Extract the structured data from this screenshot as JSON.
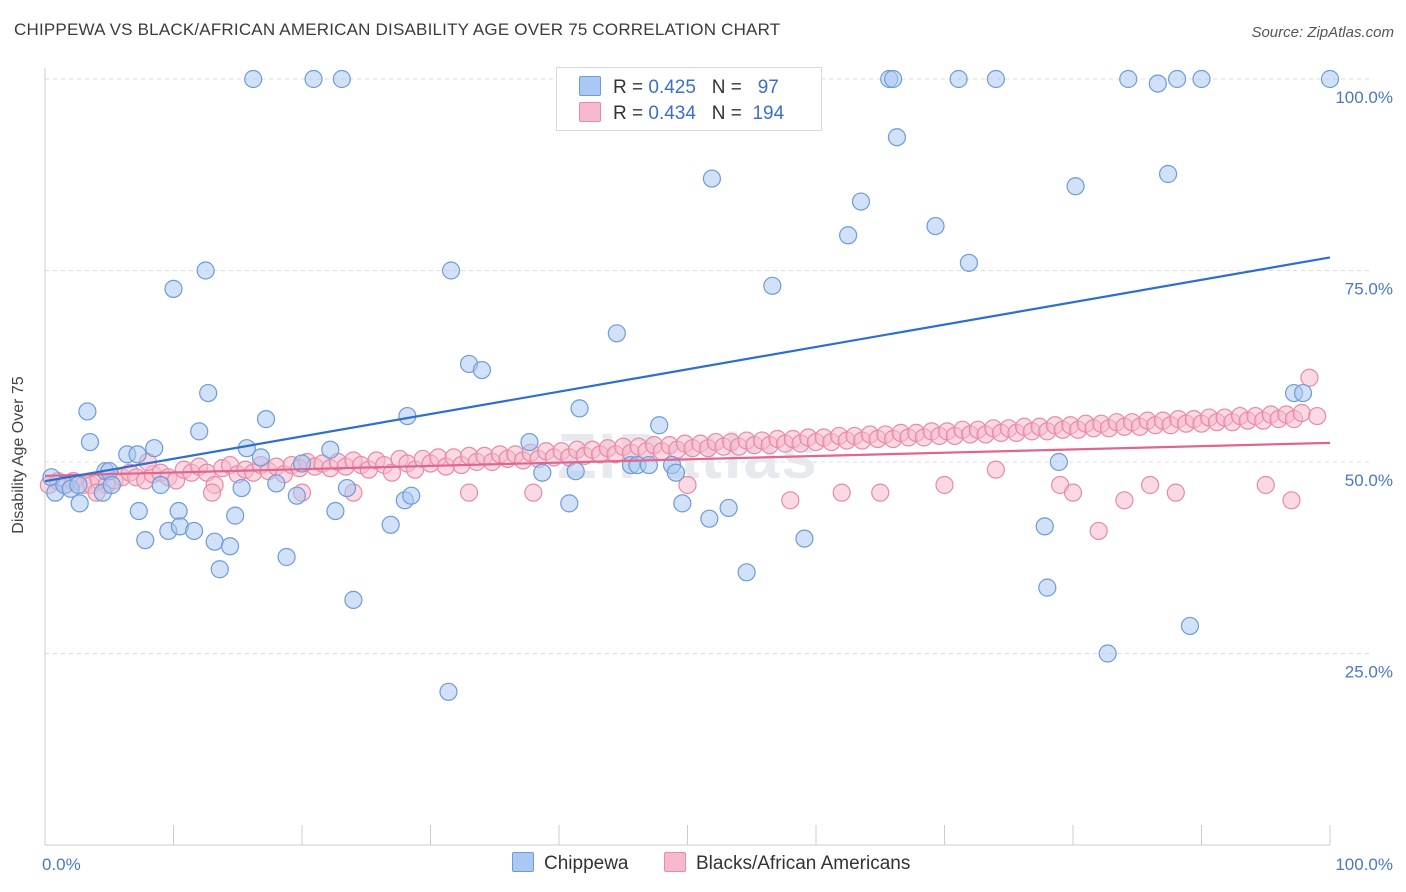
{
  "title": "CHIPPEWA VS BLACK/AFRICAN AMERICAN DISABILITY AGE OVER 75 CORRELATION CHART",
  "source": "Source: ZipAtlas.com",
  "watermark": "ZIPatlas",
  "legend": {
    "rows": [
      {
        "r_label": "R =",
        "r_value": "0.425",
        "n_label": "N =",
        "n_value": "97"
      },
      {
        "r_label": "R =",
        "r_value": "0.434",
        "n_label": "N =",
        "n_value": "194"
      }
    ]
  },
  "bottom_legend": {
    "series1": "Chippewa",
    "series2": "Blacks/African Americans"
  },
  "colors": {
    "chippewa_fill": "#a9c8f2",
    "chippewa_stroke": "#6f9bd6",
    "chippewa_line": "#2d6fd0",
    "black_fill": "#f6b9cc",
    "black_stroke": "#e88aa8",
    "black_line": "#e0668f",
    "grid": "#dddddd",
    "axis_label": "#4a78c8"
  },
  "chart_data": {
    "type": "scatter",
    "title": "CHIPPEWA VS BLACK/AFRICAN AMERICAN DISABILITY AGE OVER 75 CORRELATION CHART",
    "xlabel": "",
    "ylabel": "Disability Age Over 75",
    "xlim": [
      0,
      100
    ],
    "ylim": [
      0,
      105
    ],
    "x_tick_labels": [
      "0.0%",
      "100.0%"
    ],
    "y_ticks": [
      25,
      50,
      75,
      100
    ],
    "y_tick_labels": [
      "25.0%",
      "50.0%",
      "75.0%",
      "100.0%"
    ],
    "grid": true,
    "legend_position": "top-center",
    "series": [
      {
        "name": "Chippewa",
        "r": 0.425,
        "n": 97,
        "trend": {
          "x": [
            0,
            100
          ],
          "y": [
            47.5,
            76.7
          ]
        },
        "points": [
          [
            0.5,
            48
          ],
          [
            0.8,
            46
          ],
          [
            1.5,
            47
          ],
          [
            2,
            46.5
          ],
          [
            2.6,
            47
          ],
          [
            2.7,
            44.6
          ],
          [
            3.3,
            56.6
          ],
          [
            3.5,
            52.6
          ],
          [
            4.5,
            46
          ],
          [
            4.7,
            48.8
          ],
          [
            5,
            48.8
          ],
          [
            5.2,
            47
          ],
          [
            6.4,
            51
          ],
          [
            7.2,
            51
          ],
          [
            7.3,
            43.6
          ],
          [
            7.8,
            39.8
          ],
          [
            8.5,
            51.8
          ],
          [
            9,
            47
          ],
          [
            9.6,
            41
          ],
          [
            10,
            72.6
          ],
          [
            10.4,
            43.6
          ],
          [
            10.5,
            41.6
          ],
          [
            11.6,
            41
          ],
          [
            12,
            54
          ],
          [
            12.5,
            75
          ],
          [
            12.7,
            59
          ],
          [
            13.2,
            39.6
          ],
          [
            13.6,
            36
          ],
          [
            14.4,
            39
          ],
          [
            14.8,
            43
          ],
          [
            15.3,
            46.6
          ],
          [
            15.7,
            51.8
          ],
          [
            16.2,
            100
          ],
          [
            16.8,
            50.6
          ],
          [
            17.2,
            55.6
          ],
          [
            18,
            47.2
          ],
          [
            18.8,
            37.6
          ],
          [
            19.6,
            45.6
          ],
          [
            20,
            49.8
          ],
          [
            20.9,
            100
          ],
          [
            22.2,
            51.6
          ],
          [
            22.6,
            43.6
          ],
          [
            23.1,
            100
          ],
          [
            23.5,
            46.6
          ],
          [
            24,
            32
          ],
          [
            26.9,
            41.8
          ],
          [
            28,
            45
          ],
          [
            28.2,
            56
          ],
          [
            28.5,
            45.6
          ],
          [
            31.4,
            20
          ],
          [
            31.6,
            75
          ],
          [
            33,
            62.8
          ],
          [
            34,
            62
          ],
          [
            37.7,
            52.6
          ],
          [
            38.7,
            48.6
          ],
          [
            41.3,
            48.8
          ],
          [
            40.8,
            44.6
          ],
          [
            41.6,
            57
          ],
          [
            44.5,
            66.8
          ],
          [
            45.6,
            49.6
          ],
          [
            46.1,
            49.6
          ],
          [
            47,
            49.6
          ],
          [
            47.8,
            54.8
          ],
          [
            48.8,
            49.6
          ],
          [
            49.1,
            48.6
          ],
          [
            49.6,
            44.6
          ],
          [
            51.7,
            42.6
          ],
          [
            51.9,
            87
          ],
          [
            53.2,
            44
          ],
          [
            54.6,
            35.6
          ],
          [
            56.6,
            73
          ],
          [
            59.1,
            40
          ],
          [
            62.5,
            79.6
          ],
          [
            63.5,
            84
          ],
          [
            65.7,
            100
          ],
          [
            66,
            100
          ],
          [
            66.3,
            92.4
          ],
          [
            69.3,
            80.8
          ],
          [
            71.1,
            100
          ],
          [
            71.9,
            76
          ],
          [
            74,
            100
          ],
          [
            77.8,
            41.6
          ],
          [
            78,
            33.6
          ],
          [
            78.9,
            50
          ],
          [
            80.2,
            86
          ],
          [
            82.7,
            25
          ],
          [
            84.3,
            100
          ],
          [
            86.6,
            99.4
          ],
          [
            87.4,
            87.6
          ],
          [
            88.1,
            100
          ],
          [
            89.1,
            28.6
          ],
          [
            90,
            100
          ],
          [
            97.2,
            59
          ],
          [
            97.9,
            59
          ],
          [
            100,
            100
          ]
        ]
      },
      {
        "name": "Blacks/African Americans",
        "r": 0.434,
        "n": 194,
        "trend": {
          "x": [
            0,
            100
          ],
          "y": [
            48.2,
            52.5
          ]
        },
        "points": [
          [
            0.3,
            47
          ],
          [
            1,
            47.5
          ],
          [
            1.6,
            47
          ],
          [
            2.2,
            47.5
          ],
          [
            3,
            47
          ],
          [
            3.6,
            47
          ],
          [
            4.2,
            47.6
          ],
          [
            4.8,
            47
          ],
          [
            5.4,
            47.6
          ],
          [
            6,
            48
          ],
          [
            6.6,
            48.6
          ],
          [
            7.1,
            48
          ],
          [
            7.8,
            47.6
          ],
          [
            8.4,
            48.4
          ],
          [
            9,
            48.6
          ],
          [
            9.6,
            48
          ],
          [
            10.2,
            47.6
          ],
          [
            10.8,
            49
          ],
          [
            11.4,
            48.6
          ],
          [
            12,
            49.4
          ],
          [
            12.6,
            48.6
          ],
          [
            13.2,
            47
          ],
          [
            13.8,
            49.2
          ],
          [
            14.4,
            49.6
          ],
          [
            15,
            48.4
          ],
          [
            15.6,
            49
          ],
          [
            16.2,
            48.6
          ],
          [
            16.8,
            49.6
          ],
          [
            17.4,
            48.8
          ],
          [
            18,
            49.4
          ],
          [
            18.6,
            48.4
          ],
          [
            19.2,
            49.6
          ],
          [
            19.8,
            49.2
          ],
          [
            20.4,
            50
          ],
          [
            21,
            49.4
          ],
          [
            21.6,
            49.8
          ],
          [
            22.2,
            49.2
          ],
          [
            22.8,
            50
          ],
          [
            23.4,
            49.4
          ],
          [
            24,
            50.2
          ],
          [
            24.6,
            49.6
          ],
          [
            25.2,
            49
          ],
          [
            25.8,
            50.2
          ],
          [
            26.4,
            49.6
          ],
          [
            27,
            48.6
          ],
          [
            27.6,
            50.4
          ],
          [
            28.2,
            49.8
          ],
          [
            28.8,
            49
          ],
          [
            29.4,
            50.4
          ],
          [
            30,
            49.8
          ],
          [
            30.6,
            50.6
          ],
          [
            31.2,
            49.4
          ],
          [
            31.8,
            50.6
          ],
          [
            32.4,
            49.6
          ],
          [
            33,
            50.8
          ],
          [
            33.6,
            50
          ],
          [
            34.2,
            50.8
          ],
          [
            34.8,
            50
          ],
          [
            35.4,
            51
          ],
          [
            36,
            50.4
          ],
          [
            36.6,
            51
          ],
          [
            37.2,
            50.2
          ],
          [
            37.8,
            51.2
          ],
          [
            38.4,
            50.4
          ],
          [
            39,
            51.4
          ],
          [
            39.6,
            50.6
          ],
          [
            40.2,
            51.4
          ],
          [
            40.8,
            50.6
          ],
          [
            41.4,
            51.6
          ],
          [
            42,
            50.8
          ],
          [
            42.6,
            51.6
          ],
          [
            43.2,
            51
          ],
          [
            43.8,
            51.8
          ],
          [
            44.4,
            51
          ],
          [
            45,
            52
          ],
          [
            45.6,
            51.2
          ],
          [
            46.2,
            52
          ],
          [
            46.8,
            51.4
          ],
          [
            47.4,
            52.2
          ],
          [
            48,
            51.4
          ],
          [
            48.6,
            52.2
          ],
          [
            49.2,
            51.6
          ],
          [
            49.8,
            52.4
          ],
          [
            50.4,
            51.8
          ],
          [
            51,
            52.4
          ],
          [
            51.6,
            51.8
          ],
          [
            52.2,
            52.6
          ],
          [
            52.8,
            52
          ],
          [
            53.4,
            52.6
          ],
          [
            54,
            52
          ],
          [
            54.6,
            52.8
          ],
          [
            55.2,
            52.2
          ],
          [
            55.8,
            52.8
          ],
          [
            56.4,
            52.2
          ],
          [
            57,
            53
          ],
          [
            57.6,
            52.4
          ],
          [
            58.2,
            53
          ],
          [
            58.8,
            52.4
          ],
          [
            59.4,
            53.2
          ],
          [
            60,
            52.6
          ],
          [
            60.6,
            53.2
          ],
          [
            61.2,
            52.6
          ],
          [
            61.8,
            53.4
          ],
          [
            62.4,
            52.8
          ],
          [
            63,
            53.4
          ],
          [
            63.6,
            52.8
          ],
          [
            64.2,
            53.6
          ],
          [
            64.8,
            53
          ],
          [
            65.4,
            53.6
          ],
          [
            66,
            53
          ],
          [
            66.6,
            53.8
          ],
          [
            67.2,
            53.2
          ],
          [
            67.8,
            53.8
          ],
          [
            68.4,
            53.2
          ],
          [
            69,
            54
          ],
          [
            69.6,
            53.4
          ],
          [
            70.2,
            54
          ],
          [
            70.8,
            53.4
          ],
          [
            71.4,
            54.2
          ],
          [
            72,
            53.6
          ],
          [
            72.6,
            54.2
          ],
          [
            73.2,
            53.6
          ],
          [
            73.8,
            54.4
          ],
          [
            74.4,
            53.8
          ],
          [
            75,
            54.4
          ],
          [
            75.6,
            53.8
          ],
          [
            76.2,
            54.6
          ],
          [
            76.8,
            54
          ],
          [
            77.4,
            54.6
          ],
          [
            78,
            54
          ],
          [
            78.6,
            54.8
          ],
          [
            79.2,
            54.2
          ],
          [
            79.8,
            54.8
          ],
          [
            80.4,
            54.2
          ],
          [
            81,
            55
          ],
          [
            81.6,
            54.4
          ],
          [
            82.2,
            55
          ],
          [
            82.8,
            54.4
          ],
          [
            83.4,
            55.2
          ],
          [
            84,
            54.6
          ],
          [
            84.6,
            55.2
          ],
          [
            85.2,
            54.6
          ],
          [
            85.8,
            55.4
          ],
          [
            86.4,
            54.8
          ],
          [
            87,
            55.4
          ],
          [
            87.6,
            54.8
          ],
          [
            88.2,
            55.6
          ],
          [
            88.8,
            55
          ],
          [
            89.4,
            55.6
          ],
          [
            90,
            55
          ],
          [
            90.6,
            55.8
          ],
          [
            91.2,
            55.2
          ],
          [
            91.8,
            55.8
          ],
          [
            92.4,
            55.2
          ],
          [
            93,
            56
          ],
          [
            93.6,
            55.4
          ],
          [
            94.2,
            56
          ],
          [
            94.8,
            55.4
          ],
          [
            95.4,
            56.2
          ],
          [
            96,
            55.6
          ],
          [
            96.6,
            56.2
          ],
          [
            97.2,
            55.6
          ],
          [
            97.8,
            56.4
          ],
          [
            98.4,
            61
          ],
          [
            99,
            56
          ],
          [
            4,
            46
          ],
          [
            8,
            50
          ],
          [
            13,
            46
          ],
          [
            20,
            46
          ],
          [
            24,
            46
          ],
          [
            33,
            46
          ],
          [
            38,
            46
          ],
          [
            50,
            47
          ],
          [
            58,
            45
          ],
          [
            62,
            46
          ],
          [
            65,
            46
          ],
          [
            70,
            47
          ],
          [
            74,
            49
          ],
          [
            79,
            47
          ],
          [
            80,
            46
          ],
          [
            84,
            45
          ],
          [
            86,
            47
          ],
          [
            88,
            46
          ],
          [
            95,
            47
          ],
          [
            97,
            45
          ],
          [
            82,
            41
          ]
        ]
      }
    ]
  }
}
